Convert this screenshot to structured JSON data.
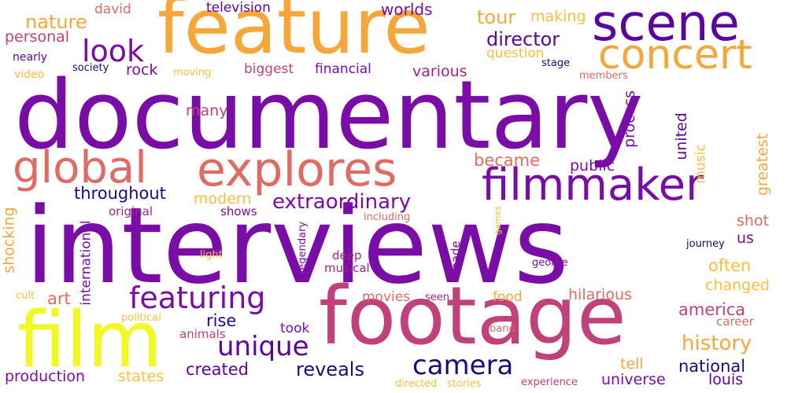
{
  "palette": {
    "purple": "#7a0da8",
    "deep_purple": "#5b04a0",
    "magenta": "#a3237f",
    "pink": "#c1427a",
    "salmon": "#e16a62",
    "orange": "#f7a63a",
    "light_orange": "#fbbf3b",
    "yellow": "#f0f921",
    "navy": "#1b0b7e"
  },
  "words": [
    {
      "text": "documentary",
      "color": "#7a0da8"
    },
    {
      "text": "interviews",
      "color": "#7a0da8"
    },
    {
      "text": "feature",
      "color": "#f7a63a"
    },
    {
      "text": "footage",
      "color": "#c1427a"
    },
    {
      "text": "film",
      "color": "#f0f921"
    },
    {
      "text": "scene",
      "color": "#5b04a0"
    },
    {
      "text": "concert",
      "color": "#f7a63a"
    },
    {
      "text": "explores",
      "color": "#e16a62"
    },
    {
      "text": "filmmaker",
      "color": "#7a0da8"
    },
    {
      "text": "global",
      "color": "#e16a62"
    },
    {
      "text": "look",
      "color": "#7a0da8"
    },
    {
      "text": "featuring",
      "color": "#7a0da8"
    },
    {
      "text": "unique",
      "color": "#5b04a0"
    },
    {
      "text": "camera",
      "color": "#1b0b7e"
    },
    {
      "text": "extraordinary",
      "color": "#7a0da8"
    },
    {
      "text": "nature",
      "color": "#f7a63a"
    },
    {
      "text": "worlds",
      "color": "#7a0da8"
    },
    {
      "text": "tour",
      "color": "#f7a63a"
    },
    {
      "text": "director",
      "color": "#5b04a0"
    },
    {
      "text": "david",
      "color": "#e16a62"
    },
    {
      "text": "television",
      "color": "#5b04a0"
    },
    {
      "text": "personal",
      "color": "#c1427a"
    },
    {
      "text": "making",
      "color": "#fbbf3b"
    },
    {
      "text": "question",
      "color": "#fbbf3b"
    },
    {
      "text": "nearly",
      "color": "#5b04a0"
    },
    {
      "text": "rock",
      "color": "#7a0da8"
    },
    {
      "text": "biggest",
      "color": "#c1427a"
    },
    {
      "text": "financial",
      "color": "#7a0da8"
    },
    {
      "text": "various",
      "color": "#a3237f"
    },
    {
      "text": "stage",
      "color": "#1b0b7e"
    },
    {
      "text": "video",
      "color": "#fbbf3b"
    },
    {
      "text": "society",
      "color": "#1b0b7e"
    },
    {
      "text": "moving",
      "color": "#fbbf3b"
    },
    {
      "text": "members",
      "color": "#e16a62"
    },
    {
      "text": "many",
      "color": "#c1427a"
    },
    {
      "text": "process",
      "color": "#7a0da8"
    },
    {
      "text": "united",
      "color": "#5b04a0"
    },
    {
      "text": "music",
      "color": "#fbbf3b"
    },
    {
      "text": "became",
      "color": "#e16a62"
    },
    {
      "text": "public",
      "color": "#7a0da8"
    },
    {
      "text": "greatest",
      "color": "#f7a63a"
    },
    {
      "text": "throughout",
      "color": "#1b0b7e"
    },
    {
      "text": "modern",
      "color": "#fbbf3b"
    },
    {
      "text": "original",
      "color": "#a3237f"
    },
    {
      "text": "shows",
      "color": "#7a0da8"
    },
    {
      "text": "shot",
      "color": "#e16a62"
    },
    {
      "text": "including",
      "color": "#e16a62"
    },
    {
      "text": "games",
      "color": "#fbbf3b"
    },
    {
      "text": "us",
      "color": "#7a0da8"
    },
    {
      "text": "shocking",
      "color": "#f7a63a"
    },
    {
      "text": "international",
      "color": "#7a0da8"
    },
    {
      "text": "legendary",
      "color": "#7a0da8"
    },
    {
      "text": "light",
      "color": "#fbbf3b"
    },
    {
      "text": "deep",
      "color": "#a3237f"
    },
    {
      "text": "musical",
      "color": "#a3237f"
    },
    {
      "text": "made",
      "color": "#7a0da8"
    },
    {
      "text": "george",
      "color": "#7a0da8"
    },
    {
      "text": "journey",
      "color": "#1b0b7e"
    },
    {
      "text": "often",
      "color": "#fbbf3b"
    },
    {
      "text": "changed",
      "color": "#fbbf3b"
    },
    {
      "text": "cult",
      "color": "#fbbf3b"
    },
    {
      "text": "art",
      "color": "#e16a62"
    },
    {
      "text": "movies",
      "color": "#e16a62"
    },
    {
      "text": "seen",
      "color": "#a3237f"
    },
    {
      "text": "hilarious",
      "color": "#e16a62"
    },
    {
      "text": "america",
      "color": "#c1427a"
    },
    {
      "text": "political",
      "color": "#fbbf3b"
    },
    {
      "text": "rise",
      "color": "#1b0b7e"
    },
    {
      "text": "food",
      "color": "#f7a63a"
    },
    {
      "text": "career",
      "color": "#e16a62"
    },
    {
      "text": "animals",
      "color": "#c1427a"
    },
    {
      "text": "took",
      "color": "#7a0da8"
    },
    {
      "text": "band",
      "color": "#e16a62"
    },
    {
      "text": "history",
      "color": "#f7a63a"
    },
    {
      "text": "created",
      "color": "#5b04a0"
    },
    {
      "text": "reveals",
      "color": "#1b0b7e"
    },
    {
      "text": "tell",
      "color": "#f7a63a"
    },
    {
      "text": "national",
      "color": "#1b0b7e"
    },
    {
      "text": "production",
      "color": "#7a0da8"
    },
    {
      "text": "states",
      "color": "#fbbf3b"
    },
    {
      "text": "universe",
      "color": "#7a0da8"
    },
    {
      "text": "louis",
      "color": "#5b04a0"
    },
    {
      "text": "directed",
      "color": "#fbbf3b"
    },
    {
      "text": "stories",
      "color": "#fbbf3b"
    },
    {
      "text": "experience",
      "color": "#c1427a"
    }
  ]
}
